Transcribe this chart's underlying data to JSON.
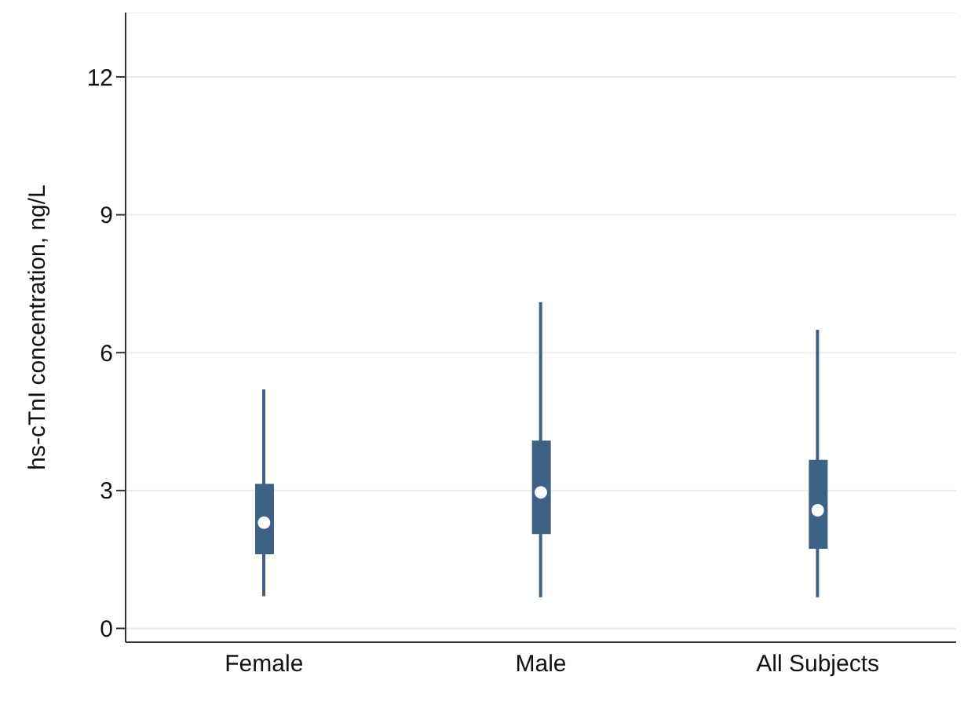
{
  "chart_data": {
    "type": "box",
    "ylabel": "hs-cTnI concentration, ng/L",
    "categories": [
      "Female",
      "Male",
      "All Subjects"
    ],
    "boxes": [
      {
        "low": 0.7,
        "q1": 1.63,
        "median": 2.3,
        "q3": 3.13,
        "high": 5.2
      },
      {
        "low": 0.68,
        "q1": 2.07,
        "median": 2.96,
        "q3": 4.07,
        "high": 7.1
      },
      {
        "low": 0.68,
        "q1": 1.75,
        "median": 2.57,
        "q3": 3.65,
        "high": 6.5
      }
    ],
    "color": "#3e6186",
    "ylim": [
      -0.3,
      13.4
    ],
    "yticks": [
      0,
      3,
      6,
      9,
      12
    ],
    "grid": "y"
  }
}
